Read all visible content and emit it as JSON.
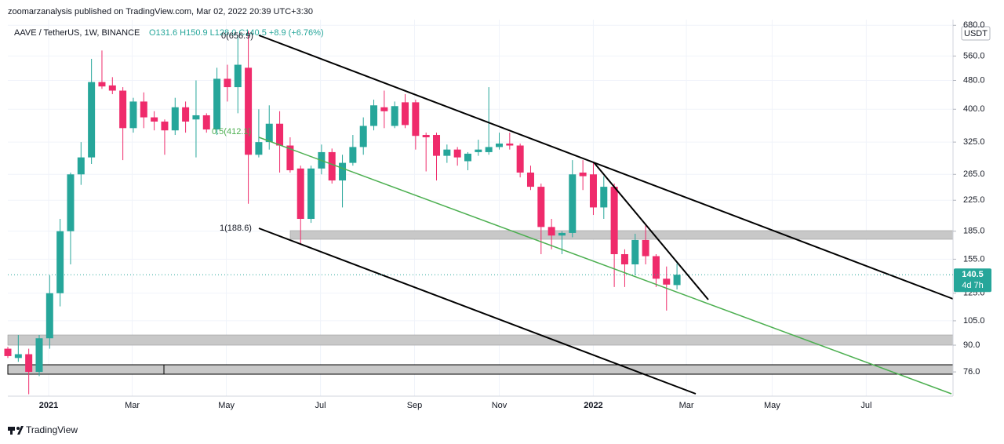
{
  "header": "zoomarzanalysis published on TradingView.com, Mar 02, 2022 20:39 UTC+3:30",
  "brand": "TradingView",
  "chart_data": {
    "type": "candlestick",
    "symbol": "AAVE / TetherUS, 1W, BINANCE",
    "ohlc_label": "O131.6 H150.9 L128.0 C140.5 +8.9 (+6.76%)",
    "currency": "USDT",
    "last_price": 140.5,
    "countdown": "4d 7h",
    "up_color": "#26a69a",
    "down_color": "#ef2b6b",
    "log_scale": true,
    "grid": true,
    "x": [
      0,
      1,
      2,
      3,
      4,
      5,
      6,
      7,
      8,
      9,
      10,
      11,
      12,
      13,
      14,
      15,
      16,
      17,
      18,
      19,
      20,
      21,
      22,
      23,
      24,
      25,
      26,
      27,
      28,
      29,
      30,
      31,
      32,
      33,
      34,
      35,
      36,
      37,
      38,
      39,
      40,
      41,
      42,
      43,
      44,
      45,
      46,
      47,
      48,
      49,
      50,
      51,
      52,
      53,
      54,
      55,
      56,
      57,
      58,
      59,
      60,
      61,
      62,
      63,
      64
    ],
    "open": [
      88,
      83,
      85,
      76,
      94,
      125,
      185,
      265,
      295,
      475,
      465,
      450,
      355,
      420,
      380,
      370,
      350,
      405,
      375,
      385,
      352,
      485,
      460,
      520,
      300,
      325,
      365,
      318,
      275,
      200,
      275,
      305,
      255,
      285,
      315,
      360,
      405,
      360,
      418,
      418,
      340,
      340,
      298,
      310,
      288,
      305,
      305,
      315,
      322,
      318,
      268,
      245,
      190,
      180,
      183,
      268,
      265,
      215,
      245,
      160,
      150,
      175,
      158,
      137,
      131.6
    ],
    "high": [
      89,
      96,
      88,
      96,
      140,
      200,
      268,
      325,
      550,
      580,
      490,
      460,
      430,
      445,
      395,
      375,
      430,
      420,
      480,
      390,
      520,
      530,
      640,
      657,
      400,
      410,
      395,
      335,
      280,
      280,
      320,
      312,
      300,
      340,
      380,
      425,
      450,
      420,
      440,
      425,
      345,
      345,
      320,
      315,
      305,
      330,
      460,
      345,
      345,
      322,
      280,
      250,
      200,
      185,
      290,
      290,
      285,
      262,
      250,
      165,
      182,
      192,
      160,
      148,
      150.9
    ],
    "low": [
      83,
      81,
      66,
      74,
      88,
      115,
      150,
      248,
      283,
      455,
      440,
      290,
      345,
      355,
      350,
      300,
      340,
      345,
      295,
      345,
      340,
      420,
      390,
      220,
      295,
      310,
      268,
      268,
      170,
      195,
      265,
      250,
      215,
      280,
      300,
      350,
      355,
      355,
      355,
      310,
      270,
      255,
      285,
      280,
      272,
      298,
      300,
      310,
      310,
      260,
      240,
      160,
      165,
      160,
      178,
      240,
      205,
      200,
      130,
      130,
      140,
      150,
      130,
      112,
      128.0
    ],
    "close": [
      84,
      85,
      76,
      94,
      125,
      185,
      265,
      295,
      475,
      462,
      450,
      355,
      420,
      380,
      370,
      350,
      405,
      370,
      385,
      352,
      485,
      460,
      530,
      300,
      325,
      365,
      318,
      272,
      200,
      275,
      305,
      255,
      285,
      315,
      360,
      410,
      395,
      408,
      362,
      338,
      335,
      298,
      310,
      295,
      302,
      310,
      315,
      322,
      318,
      268,
      245,
      190,
      180,
      183,
      265,
      262,
      215,
      245,
      160,
      150,
      175,
      158,
      137,
      132,
      140.5
    ],
    "xlim": [
      0,
      90.4
    ],
    "xticks": [
      {
        "value": 3.9,
        "label": "2021"
      },
      {
        "value": 11.9,
        "label": "Mar"
      },
      {
        "value": 20.9,
        "label": "May"
      },
      {
        "value": 29.9,
        "label": "Jul"
      },
      {
        "value": 38.9,
        "label": "Sep"
      },
      {
        "value": 47.0,
        "label": "Nov"
      },
      {
        "value": 56.0,
        "label": "2022"
      },
      {
        "value": 64.9,
        "label": "Mar"
      },
      {
        "value": 73.1,
        "label": "May"
      },
      {
        "value": 82.1,
        "label": "Jul"
      }
    ],
    "ylim": [
      65.2,
      705
    ],
    "yticks": [
      {
        "value": 76,
        "label": "76.0"
      },
      {
        "value": 90,
        "label": "90.0"
      },
      {
        "value": 105,
        "label": "105.0"
      },
      {
        "value": 125,
        "label": "125.0"
      },
      {
        "value": 155,
        "label": "155.0"
      },
      {
        "value": 185,
        "label": "185.0"
      },
      {
        "value": 225,
        "label": "225.0"
      },
      {
        "value": 265,
        "label": "265.0"
      },
      {
        "value": 325,
        "label": "325.0"
      },
      {
        "value": 400,
        "label": "400.0"
      },
      {
        "value": 480,
        "label": "480.0"
      },
      {
        "value": 560,
        "label": "560.0"
      },
      {
        "value": 680,
        "label": "680.0"
      }
    ],
    "annotations": [
      "0(656.9)",
      "0.5(412.1)",
      "1(188.6)"
    ]
  }
}
